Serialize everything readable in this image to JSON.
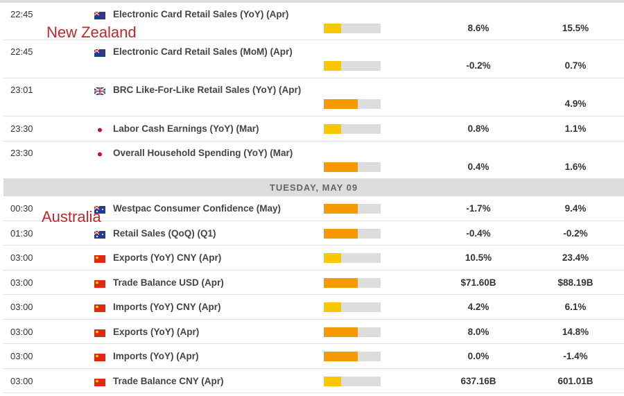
{
  "colors": {
    "low_impact": "#f7c800",
    "medium_impact": "#f59a00",
    "bar_bg": "#dddddd",
    "annotation": "#c0282d"
  },
  "annotations": {
    "nz": "New Zealand",
    "au": "Australia"
  },
  "day_header": "TUESDAY, MAY 09",
  "rows": [
    {
      "time": "22:45",
      "country": "new-zealand",
      "event": "Electronic Card Retail Sales (YoY) (Apr)",
      "impact": 0.3,
      "impact_level": "low",
      "actual": "8.6%",
      "previous": "15.5%"
    },
    {
      "time": "22:45",
      "country": "new-zealand",
      "event": "Electronic Card Retail Sales (MoM) (Apr)",
      "impact": 0.3,
      "impact_level": "low",
      "actual": "-0.2%",
      "previous": "0.7%"
    },
    {
      "time": "23:01",
      "country": "uk",
      "event": "BRC Like-For-Like Retail Sales (YoY) (Apr)",
      "impact": 0.6,
      "impact_level": "medium",
      "actual": "",
      "previous": "4.9%"
    },
    {
      "time": "23:30",
      "country": "japan",
      "event": "Labor Cash Earnings (YoY) (Mar)",
      "impact": 0.3,
      "impact_level": "low",
      "actual": "0.8%",
      "previous": "1.1%"
    },
    {
      "time": "23:30",
      "country": "japan",
      "event": "Overall Household Spending (YoY) (Mar)",
      "impact": 0.6,
      "impact_level": "medium",
      "actual": "0.4%",
      "previous": "1.6%"
    },
    {
      "time": "00:30",
      "country": "australia",
      "event": "Westpac Consumer Confidence (May)",
      "impact": 0.6,
      "impact_level": "medium",
      "actual": "-1.7%",
      "previous": "9.4%"
    },
    {
      "time": "01:30",
      "country": "australia",
      "event": "Retail Sales (QoQ) (Q1)",
      "impact": 0.6,
      "impact_level": "medium",
      "actual": "-0.4%",
      "previous": "-0.2%"
    },
    {
      "time": "03:00",
      "country": "china",
      "event": "Exports (YoY) CNY (Apr)",
      "impact": 0.3,
      "impact_level": "low",
      "actual": "10.5%",
      "previous": "23.4%"
    },
    {
      "time": "03:00",
      "country": "china",
      "event": "Trade Balance USD (Apr)",
      "impact": 0.6,
      "impact_level": "medium",
      "actual": "$71.60B",
      "previous": "$88.19B"
    },
    {
      "time": "03:00",
      "country": "china",
      "event": "Imports (YoY) CNY (Apr)",
      "impact": 0.3,
      "impact_level": "low",
      "actual": "4.2%",
      "previous": "6.1%"
    },
    {
      "time": "03:00",
      "country": "china",
      "event": "Exports (YoY) (Apr)",
      "impact": 0.6,
      "impact_level": "medium",
      "actual": "8.0%",
      "previous": "14.8%"
    },
    {
      "time": "03:00",
      "country": "china",
      "event": "Imports (YoY) (Apr)",
      "impact": 0.6,
      "impact_level": "medium",
      "actual": "0.0%",
      "previous": "-1.4%"
    },
    {
      "time": "03:00",
      "country": "china",
      "event": "Trade Balance CNY (Apr)",
      "impact": 0.3,
      "impact_level": "low",
      "actual": "637.16B",
      "previous": "601.01B"
    }
  ]
}
